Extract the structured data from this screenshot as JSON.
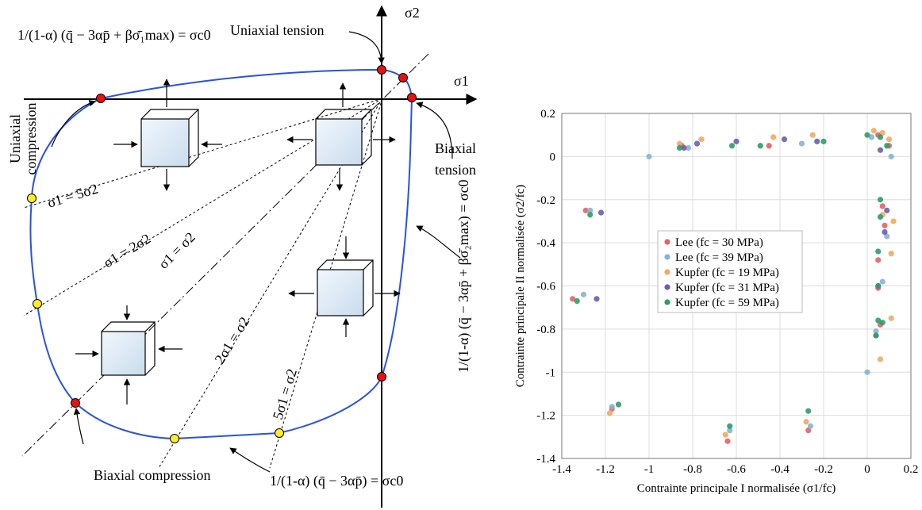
{
  "diagram": {
    "axis_x": "σ1",
    "axis_y": "σ2",
    "uniaxial_tension": "Uniaxial tension",
    "uniaxial_compression": [
      "Uniaxial",
      "compression"
    ],
    "biaxial_tension": [
      "Biaxial",
      "tension"
    ],
    "biaxial_compression": "Biaxial compression",
    "formula_top": "1/(1-α) (q̄ − 3αp̄ + βσ̄₁max) = σc0",
    "formula_right": "1/(1-α) (q̄ − 3αp̄ + βσ̄₂max) = σc0",
    "formula_bottom": "1/(1-α) (q̄ − 3αp̄) = σc0",
    "paths": [
      "σ1 = 5σ2",
      "σ1 = 2σ2",
      "σ1 = σ2",
      "2σ1 = σ2",
      "5σ1 = σ2"
    ]
  },
  "chart_data": {
    "type": "scatter",
    "xlabel": "Contrainte principale I normalisée (σ1/fc)",
    "ylabel": "Contrainte principale II normalisée (σ2/fc)",
    "xlim": [
      -1.4,
      0.2
    ],
    "ylim": [
      -1.4,
      0.2
    ],
    "xticks": [
      -1.4,
      -1.2,
      -1,
      -0.8,
      -0.6,
      -0.4,
      -0.2,
      0,
      0.2
    ],
    "yticks": [
      -1.4,
      -1.2,
      -1,
      -0.8,
      -0.6,
      -0.4,
      -0.2,
      0,
      0.2
    ],
    "grid": true,
    "legend": "center",
    "series": [
      {
        "name": "Lee (fc = 30 MPa)",
        "color": "#e06464",
        "x": [
          -1.29,
          -1.35,
          -1.17,
          -0.64,
          -0.27,
          -0.45,
          0.05,
          0.07,
          0.08,
          0.05,
          0.04,
          0.05,
          0.1,
          -0.85,
          0.06
        ],
        "values": [
          -0.25,
          -0.66,
          -1.17,
          -1.32,
          -1.27,
          0.05,
          -0.48,
          -0.23,
          -0.32,
          -0.61,
          -0.83,
          0.1,
          0.05,
          0.05,
          -0.78
        ]
      },
      {
        "name": "Lee (fc = 39 MPa)",
        "color": "#86b4d4",
        "x": [
          -1.27,
          -1.3,
          -1.17,
          -0.63,
          -0.26,
          -1,
          0,
          -0.82,
          0.09,
          0.07,
          0.04,
          0.02,
          0.11,
          -0.3
        ],
        "values": [
          -0.25,
          -0.64,
          -1.16,
          -1.27,
          -1.25,
          0,
          -1,
          0.04,
          -0.37,
          -0.58,
          -0.81,
          0.09,
          0,
          0.06
        ]
      },
      {
        "name": "Kupfer (fc = 19 MPa)",
        "color": "#f0aa64",
        "x": [
          -1.18,
          -0.65,
          -0.28,
          -0.86,
          -0.76,
          -0.43,
          -0.25,
          0.03,
          0.07,
          0.1,
          0.12,
          0.11,
          0.11,
          0.06,
          0.07
        ],
        "values": [
          -1.19,
          -1.29,
          -1.23,
          0.06,
          0.08,
          0.09,
          0.1,
          0.12,
          0.11,
          0.08,
          -0.3,
          -0.45,
          -0.75,
          -0.94,
          -0.27
        ]
      },
      {
        "name": "Kupfer (fc = 31 MPa)",
        "color": "#6e5cb4",
        "x": [
          -1.22,
          -1.24,
          -0.78,
          -0.6,
          -0.38,
          -0.23,
          0.08,
          0.09,
          0.05,
          0.06,
          -0.84
        ],
        "values": [
          -0.26,
          -0.66,
          0.06,
          0.07,
          0.08,
          0.07,
          -0.35,
          -0.25,
          -0.6,
          0.03,
          0.04
        ]
      },
      {
        "name": "Kupfer (fc = 59 MPa)",
        "color": "#2e9c6c",
        "x": [
          -1.27,
          -1.33,
          -1.14,
          -0.63,
          -0.27,
          -0.86,
          -0.62,
          -0.49,
          -0.2,
          0,
          0.06,
          0.09,
          0.06,
          0.06,
          0.05,
          0.05,
          0.05,
          0.07,
          0.04
        ],
        "values": [
          -0.27,
          -0.67,
          -1.15,
          -1.25,
          -1.18,
          0.04,
          0.05,
          0.05,
          0.07,
          0.1,
          0.09,
          0.05,
          -0.2,
          -0.28,
          -0.44,
          -0.6,
          -0.76,
          -0.77,
          -0.83
        ]
      }
    ]
  }
}
